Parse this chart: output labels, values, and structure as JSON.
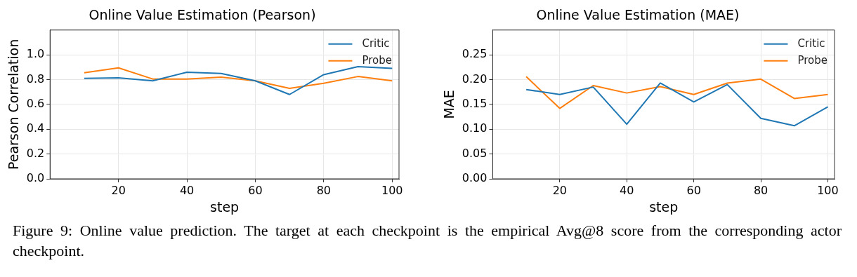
{
  "chart_data": [
    {
      "type": "line",
      "title": "Online Value Estimation (Pearson)",
      "xlabel": "step",
      "ylabel": "Pearson Correlation",
      "x": [
        10,
        20,
        30,
        40,
        50,
        60,
        70,
        80,
        90,
        100
      ],
      "series": [
        {
          "name": "Critic",
          "color": "#1f77b4",
          "values": [
            0.81,
            0.815,
            0.79,
            0.86,
            0.85,
            0.79,
            0.68,
            0.84,
            0.905,
            0.89
          ]
        },
        {
          "name": "Probe",
          "color": "#ff7f0e",
          "values": [
            0.855,
            0.895,
            0.805,
            0.805,
            0.82,
            0.79,
            0.73,
            0.77,
            0.825,
            0.79
          ]
        }
      ],
      "xlim": [
        0,
        102
      ],
      "xticks": [
        20,
        40,
        60,
        80,
        100
      ],
      "ylim": [
        0,
        1.2
      ],
      "yticks": [
        {
          "value": 0,
          "label": "0.0"
        },
        {
          "value": 0.2,
          "label": "0.2"
        },
        {
          "value": 0.4,
          "label": "0.4"
        },
        {
          "value": 0.6,
          "label": "0.6"
        },
        {
          "value": 0.8,
          "label": "0.8"
        },
        {
          "value": 1,
          "label": "1.0"
        }
      ],
      "grid": true,
      "legend": "top right",
      "marker": "none",
      "line_style": "solid",
      "annotations": [
        "Figure 9: Online value prediction. The target at each checkpoint is the empirical Avg@8 score from the corresponding actor checkpoint."
      ]
    },
    {
      "type": "line",
      "title": "Online Value Estimation (MAE)",
      "xlabel": "step",
      "ylabel": "MAE",
      "x": [
        10,
        20,
        30,
        40,
        50,
        60,
        70,
        80,
        90,
        100
      ],
      "series": [
        {
          "name": "Critic",
          "color": "#1f77b4",
          "values": [
            0.18,
            0.17,
            0.185,
            0.11,
            0.193,
            0.155,
            0.19,
            0.122,
            0.107,
            0.145
          ]
        },
        {
          "name": "Probe",
          "color": "#ff7f0e",
          "values": [
            0.206,
            0.142,
            0.188,
            0.173,
            0.186,
            0.17,
            0.193,
            0.201,
            0.162,
            0.17
          ]
        }
      ],
      "xlim": [
        0,
        102
      ],
      "xticks": [
        20,
        40,
        60,
        80,
        100
      ],
      "ylim": [
        0,
        0.3
      ],
      "yticks": [
        {
          "value": 0,
          "label": "0.00"
        },
        {
          "value": 0.05,
          "label": "0.05"
        },
        {
          "value": 0.1,
          "label": "0.10"
        },
        {
          "value": 0.15,
          "label": "0.15"
        },
        {
          "value": 0.2,
          "label": "0.20"
        },
        {
          "value": 0.25,
          "label": "0.25"
        }
      ],
      "grid": true,
      "legend": "top right",
      "marker": "none",
      "line_style": "solid"
    }
  ]
}
